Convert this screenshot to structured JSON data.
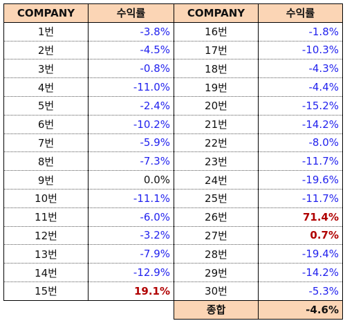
{
  "headers": {
    "company": "COMPANY",
    "return": "수익률"
  },
  "left_rows": [
    {
      "company": "1번",
      "return": "-3.8%",
      "sign": "neg"
    },
    {
      "company": "2번",
      "return": "-4.5%",
      "sign": "neg"
    },
    {
      "company": "3번",
      "return": "-0.8%",
      "sign": "neg"
    },
    {
      "company": "4번",
      "return": "-11.0%",
      "sign": "neg"
    },
    {
      "company": "5번",
      "return": "-2.4%",
      "sign": "neg"
    },
    {
      "company": "6번",
      "return": "-10.2%",
      "sign": "neg"
    },
    {
      "company": "7번",
      "return": "-5.9%",
      "sign": "neg"
    },
    {
      "company": "8번",
      "return": "-7.3%",
      "sign": "neg"
    },
    {
      "company": "9번",
      "return": "0.0%",
      "sign": "zero"
    },
    {
      "company": "10번",
      "return": "-11.1%",
      "sign": "neg"
    },
    {
      "company": "11번",
      "return": "-6.0%",
      "sign": "neg"
    },
    {
      "company": "12번",
      "return": "-3.2%",
      "sign": "neg"
    },
    {
      "company": "13번",
      "return": "-7.9%",
      "sign": "neg"
    },
    {
      "company": "14번",
      "return": "-12.9%",
      "sign": "neg"
    },
    {
      "company": "15번",
      "return": "19.1%",
      "sign": "pos"
    }
  ],
  "right_rows": [
    {
      "company": "16번",
      "return": "-1.8%",
      "sign": "neg"
    },
    {
      "company": "17번",
      "return": "-10.3%",
      "sign": "neg"
    },
    {
      "company": "18번",
      "return": "-4.3%",
      "sign": "neg"
    },
    {
      "company": "19번",
      "return": "-4.4%",
      "sign": "neg"
    },
    {
      "company": "20번",
      "return": "-15.2%",
      "sign": "neg"
    },
    {
      "company": "21번",
      "return": "-14.2%",
      "sign": "neg"
    },
    {
      "company": "22번",
      "return": "-8.0%",
      "sign": "neg"
    },
    {
      "company": "23번",
      "return": "-11.7%",
      "sign": "neg"
    },
    {
      "company": "24번",
      "return": "-19.6%",
      "sign": "neg"
    },
    {
      "company": "25번",
      "return": "-11.7%",
      "sign": "neg"
    },
    {
      "company": "26번",
      "return": "71.4%",
      "sign": "pos"
    },
    {
      "company": "27번",
      "return": "0.7%",
      "sign": "pos"
    },
    {
      "company": "28번",
      "return": "-19.4%",
      "sign": "neg"
    },
    {
      "company": "29번",
      "return": "-14.2%",
      "sign": "neg"
    },
    {
      "company": "30번",
      "return": "-5.3%",
      "sign": "neg"
    }
  ],
  "total": {
    "label": "종합",
    "return": "-4.6%"
  },
  "colors": {
    "header_bg": "#fbd5b5",
    "negative": "#2222ee",
    "positive": "#b00000",
    "neutral": "#111111"
  }
}
